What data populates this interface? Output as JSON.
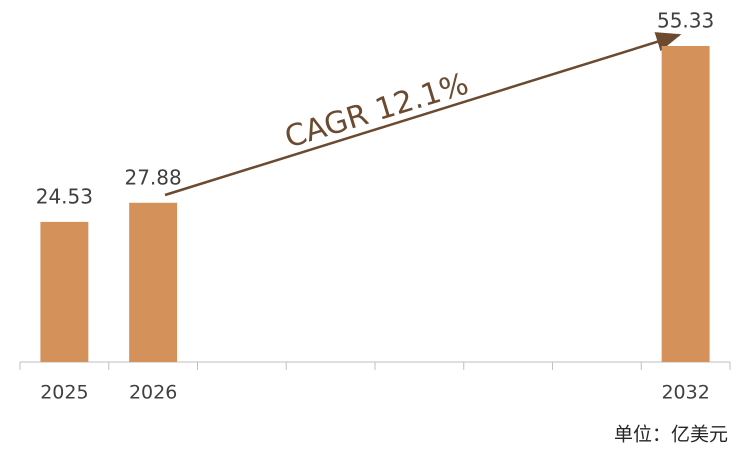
{
  "chart_data": {
    "type": "bar",
    "categories": [
      "2025",
      "2026",
      null,
      null,
      null,
      null,
      null,
      "2032"
    ],
    "values": [
      24.53,
      27.88,
      null,
      null,
      null,
      null,
      null,
      55.33
    ],
    "color": "#d4915a",
    "annotation": "CAGR 12.1%",
    "unit_note": "单位：亿美元"
  }
}
